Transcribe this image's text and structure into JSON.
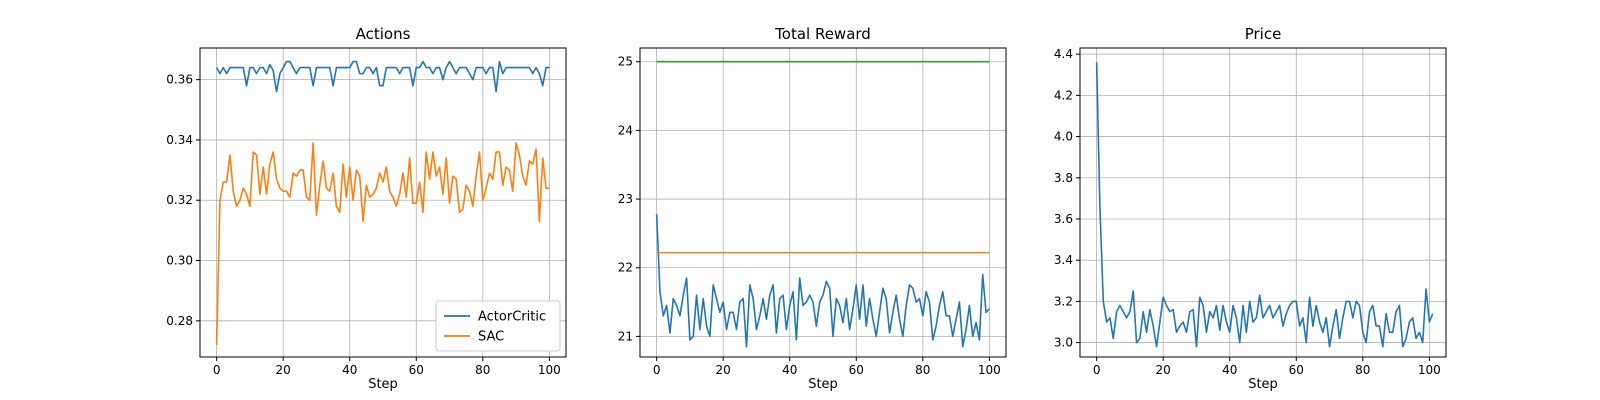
{
  "chart_data": [
    {
      "type": "line",
      "title": "Actions",
      "xlabel": "Step",
      "ylabel": "",
      "xlim": [
        -5,
        105
      ],
      "ylim": [
        0.268,
        0.3705
      ],
      "xticks": [
        0,
        20,
        40,
        60,
        80,
        100
      ],
      "xtick_labels": [
        "0",
        "20",
        "40",
        "60",
        "80",
        "100"
      ],
      "yticks": [
        0.28,
        0.3,
        0.32,
        0.34,
        0.36
      ],
      "ytick_labels": [
        "0.28",
        "0.30",
        "0.32",
        "0.34",
        "0.36"
      ],
      "grid": true,
      "legend": "lower right",
      "series": [
        {
          "name": "ActorCritic",
          "color": "#1f77b4",
          "x_start": 0,
          "values": [
            0.364,
            0.362,
            0.364,
            0.362,
            0.364,
            0.364,
            0.364,
            0.364,
            0.364,
            0.358,
            0.364,
            0.364,
            0.362,
            0.364,
            0.364,
            0.362,
            0.365,
            0.363,
            0.356,
            0.362,
            0.364,
            0.366,
            0.366,
            0.364,
            0.362,
            0.364,
            0.364,
            0.364,
            0.364,
            0.358,
            0.364,
            0.364,
            0.364,
            0.364,
            0.364,
            0.358,
            0.364,
            0.364,
            0.364,
            0.364,
            0.364,
            0.366,
            0.366,
            0.362,
            0.362,
            0.364,
            0.364,
            0.362,
            0.364,
            0.358,
            0.358,
            0.364,
            0.364,
            0.364,
            0.364,
            0.362,
            0.364,
            0.364,
            0.364,
            0.358,
            0.364,
            0.364,
            0.366,
            0.364,
            0.364,
            0.362,
            0.364,
            0.364,
            0.36,
            0.364,
            0.366,
            0.364,
            0.362,
            0.364,
            0.364,
            0.364,
            0.362,
            0.36,
            0.364,
            0.364,
            0.364,
            0.362,
            0.364,
            0.364,
            0.356,
            0.366,
            0.362,
            0.364,
            0.364,
            0.364,
            0.364,
            0.364,
            0.364,
            0.364,
            0.364,
            0.362,
            0.364,
            0.362,
            0.358,
            0.364,
            0.364
          ]
        },
        {
          "name": "SAC",
          "color": "#ff7f0e",
          "x_start": 0,
          "values": [
            0.272,
            0.32,
            0.326,
            0.326,
            0.335,
            0.323,
            0.318,
            0.32,
            0.324,
            0.322,
            0.318,
            0.336,
            0.335,
            0.322,
            0.331,
            0.322,
            0.332,
            0.336,
            0.327,
            0.324,
            0.323,
            0.323,
            0.321,
            0.329,
            0.328,
            0.33,
            0.33,
            0.321,
            0.32,
            0.339,
            0.315,
            0.325,
            0.333,
            0.324,
            0.323,
            0.329,
            0.318,
            0.316,
            0.332,
            0.321,
            0.331,
            0.32,
            0.33,
            0.328,
            0.313,
            0.325,
            0.321,
            0.322,
            0.324,
            0.329,
            0.326,
            0.331,
            0.323,
            0.321,
            0.318,
            0.322,
            0.329,
            0.321,
            0.334,
            0.319,
            0.319,
            0.326,
            0.316,
            0.336,
            0.327,
            0.336,
            0.328,
            0.331,
            0.322,
            0.334,
            0.319,
            0.328,
            0.327,
            0.316,
            0.317,
            0.325,
            0.323,
            0.318,
            0.328,
            0.336,
            0.32,
            0.324,
            0.329,
            0.327,
            0.336,
            0.336,
            0.325,
            0.331,
            0.33,
            0.323,
            0.339,
            0.335,
            0.328,
            0.325,
            0.333,
            0.332,
            0.337,
            0.313,
            0.334,
            0.324,
            0.324
          ]
        }
      ]
    },
    {
      "type": "line",
      "title": "Total Reward",
      "xlabel": "Step",
      "ylabel": "",
      "xlim": [
        -5,
        105
      ],
      "ylim": [
        20.7,
        25.2
      ],
      "xticks": [
        0,
        20,
        40,
        60,
        80,
        100
      ],
      "xtick_labels": [
        "0",
        "20",
        "40",
        "60",
        "80",
        "100"
      ],
      "yticks": [
        21,
        22,
        23,
        24,
        25
      ],
      "ytick_labels": [
        "21",
        "22",
        "23",
        "24",
        "25"
      ],
      "grid": true,
      "series": [
        {
          "color": "#1f77b4",
          "x_start": 0,
          "values": [
            22.78,
            21.65,
            21.3,
            21.45,
            21.05,
            21.55,
            21.45,
            21.3,
            21.6,
            21.85,
            20.95,
            21.0,
            21.6,
            21.1,
            21.55,
            21.15,
            21.0,
            21.75,
            21.55,
            21.35,
            21.5,
            21.1,
            21.35,
            21.35,
            21.1,
            21.5,
            21.55,
            20.85,
            21.75,
            21.55,
            21.1,
            21.3,
            21.55,
            21.25,
            21.6,
            21.75,
            21.05,
            21.55,
            21.6,
            21.1,
            21.45,
            21.65,
            20.95,
            21.85,
            21.45,
            21.5,
            21.6,
            21.5,
            21.15,
            21.5,
            21.6,
            21.8,
            21.7,
            21.0,
            21.55,
            21.45,
            21.2,
            21.55,
            21.1,
            21.4,
            21.75,
            21.25,
            21.75,
            21.15,
            21.55,
            21.25,
            21.0,
            21.35,
            21.7,
            21.55,
            21.05,
            21.35,
            21.6,
            21.25,
            21.0,
            21.45,
            21.75,
            21.7,
            21.5,
            21.55,
            21.3,
            21.65,
            21.5,
            20.95,
            21.15,
            21.45,
            21.65,
            21.3,
            21.3,
            21.0,
            21.25,
            21.5,
            20.85,
            21.1,
            21.45,
            21.0,
            21.2,
            20.95,
            21.9,
            21.35,
            21.4
          ]
        },
        {
          "color": "#ff7f0e",
          "x": [
            0,
            100
          ],
          "values": [
            22.22,
            22.22
          ]
        },
        {
          "color": "#2ca02c",
          "x": [
            0,
            100
          ],
          "values": [
            25.0,
            25.0
          ]
        }
      ]
    },
    {
      "type": "line",
      "title": "Price",
      "xlabel": "Step",
      "ylabel": "",
      "xlim": [
        -5,
        105
      ],
      "ylim": [
        2.93,
        4.43
      ],
      "xticks": [
        0,
        20,
        40,
        60,
        80,
        100
      ],
      "xtick_labels": [
        "0",
        "20",
        "40",
        "60",
        "80",
        "100"
      ],
      "yticks": [
        3.0,
        3.2,
        3.4,
        3.6,
        3.8,
        4.0,
        4.2,
        4.4
      ],
      "ytick_labels": [
        "3.0",
        "3.2",
        "3.4",
        "3.6",
        "3.8",
        "4.0",
        "4.2",
        "4.4"
      ],
      "grid": true,
      "series": [
        {
          "color": "#1f77b4",
          "x_start": 0,
          "values": [
            4.36,
            3.65,
            3.2,
            3.1,
            3.12,
            3.02,
            3.15,
            3.18,
            3.15,
            3.12,
            3.15,
            3.25,
            3.0,
            3.02,
            3.15,
            3.05,
            3.16,
            3.08,
            2.98,
            3.1,
            3.22,
            3.18,
            3.15,
            3.16,
            3.05,
            3.08,
            3.1,
            3.05,
            3.15,
            3.16,
            2.98,
            3.22,
            3.18,
            3.05,
            3.15,
            3.12,
            3.18,
            3.06,
            3.18,
            3.1,
            3.05,
            3.18,
            3.12,
            3.0,
            3.18,
            3.05,
            3.2,
            3.1,
            3.12,
            3.23,
            3.12,
            3.15,
            3.18,
            3.12,
            3.15,
            3.18,
            3.08,
            3.14,
            3.18,
            3.2,
            3.2,
            3.08,
            3.12,
            3.0,
            3.22,
            3.08,
            3.18,
            3.1,
            3.05,
            3.12,
            2.98,
            3.08,
            3.16,
            3.02,
            3.12,
            3.2,
            3.2,
            3.12,
            3.2,
            3.18,
            3.05,
            3.0,
            3.15,
            3.18,
            3.08,
            3.08,
            2.98,
            3.14,
            3.05,
            3.05,
            3.15,
            3.18,
            2.98,
            3.02,
            3.1,
            3.12,
            3.02,
            3.05,
            3.0,
            3.26,
            3.1,
            3.14
          ]
        }
      ]
    }
  ]
}
